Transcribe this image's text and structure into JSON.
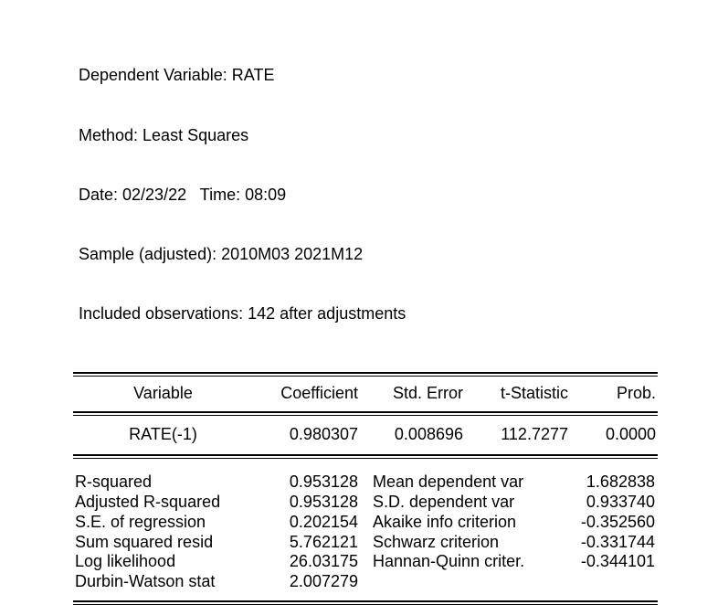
{
  "header": {
    "lines": [
      "Dependent Variable: RATE",
      "Method: Least Squares",
      "Date: 02/23/22   Time: 08:09",
      "Sample (adjusted): 2010M03 2021M12",
      "Included observations: 142 after adjustments"
    ]
  },
  "coefficients_table": {
    "columns": [
      "Variable",
      "Coefficient",
      "Std. Error",
      "t-Statistic",
      "Prob."
    ],
    "rows": [
      {
        "variable": "RATE(-1)",
        "coefficient": "0.980307",
        "std_error": "0.008696",
        "t_statistic": "112.7277",
        "prob": "0.0000"
      }
    ]
  },
  "summary_stats": {
    "rows": [
      {
        "l_label": "R-squared",
        "l_value": "0.953128",
        "r_label": "Mean dependent var",
        "r_value": "1.682838"
      },
      {
        "l_label": "Adjusted R-squared",
        "l_value": "0.953128",
        "r_label": "S.D. dependent var",
        "r_value": "0.933740"
      },
      {
        "l_label": "S.E. of regression",
        "l_value": "0.202154",
        "r_label": "Akaike info criterion",
        "r_value": "-0.352560"
      },
      {
        "l_label": "Sum squared resid",
        "l_value": "5.762121",
        "r_label": "Schwarz criterion",
        "r_value": "-0.331744"
      },
      {
        "l_label": "Log likelihood",
        "l_value": "26.03175",
        "r_label": "Hannan-Quinn criter.",
        "r_value": "-0.344101"
      },
      {
        "l_label": "Durbin-Watson stat",
        "l_value": "2.007279",
        "r_label": "",
        "r_value": ""
      }
    ]
  },
  "colors": {
    "background": "#ffffff",
    "text": "#000000",
    "rule": "#000000"
  }
}
